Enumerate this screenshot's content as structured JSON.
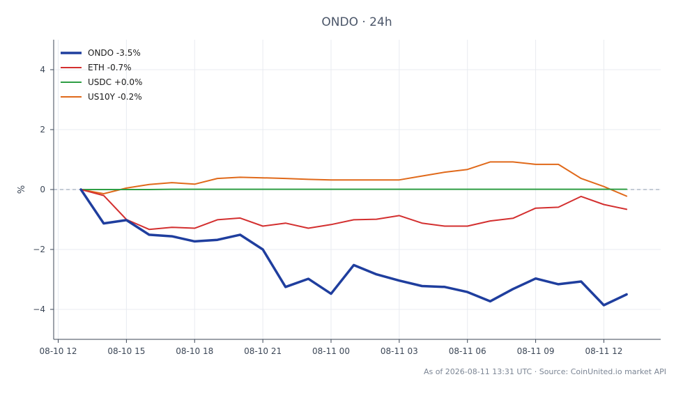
{
  "chart_data": {
    "type": "line",
    "title": "ONDO · 24h",
    "ylabel": "%",
    "xlabel": "",
    "ylim": [
      -5,
      5
    ],
    "yticks": [
      -4,
      -2,
      0,
      2,
      4
    ],
    "ytick_labels": [
      "−4",
      "−2",
      "0",
      "2",
      "4"
    ],
    "xlim_hours": [
      -0.2,
      26.5
    ],
    "xtick_labels": [
      "08-10 12",
      "08-10 15",
      "08-10 18",
      "08-10 21",
      "08-11 00",
      "08-11 03",
      "08-11 06",
      "08-11 09",
      "08-11 12"
    ],
    "grid": true,
    "legend_position": "top-left",
    "x": [
      "08-10 13:00",
      "08-10 14:00",
      "08-10 15:00",
      "08-10 16:00",
      "08-10 17:00",
      "08-10 18:00",
      "08-10 19:00",
      "08-10 20:00",
      "08-10 21:00",
      "08-10 22:00",
      "08-10 23:00",
      "08-11 00:00",
      "08-11 01:00",
      "08-11 02:00",
      "08-11 03:00",
      "08-11 04:00",
      "08-11 05:00",
      "08-11 06:00",
      "08-11 07:00",
      "08-11 08:00",
      "08-11 09:00",
      "08-11 10:00",
      "08-11 11:00",
      "08-11 12:00",
      "08-11 13:00"
    ],
    "series": [
      {
        "name": "ONDO -3.5%",
        "color": "#1f3e9e",
        "width": 3.5,
        "values": [
          0.0,
          -1.13,
          -1.02,
          -1.51,
          -1.56,
          -1.73,
          -1.68,
          -1.51,
          -2.0,
          -3.25,
          -2.98,
          -3.48,
          -2.52,
          -2.83,
          -3.04,
          -3.22,
          -3.25,
          -3.42,
          -3.73,
          -3.32,
          -2.97,
          -3.16,
          -3.07,
          -3.86,
          -3.5
        ]
      },
      {
        "name": "ETH -0.7%",
        "color": "#d32f2f",
        "width": 2,
        "values": [
          0.0,
          -0.2,
          -1.0,
          -1.33,
          -1.26,
          -1.29,
          -1.01,
          -0.95,
          -1.22,
          -1.12,
          -1.29,
          -1.17,
          -1.01,
          -0.99,
          -0.87,
          -1.12,
          -1.22,
          -1.22,
          -1.05,
          -0.96,
          -0.62,
          -0.59,
          -0.23,
          -0.5,
          -0.66
        ]
      },
      {
        "name": "USDC +0.0%",
        "color": "#2e9e44",
        "width": 2,
        "values": [
          0.0,
          0.0,
          0.0,
          0.0,
          0.01,
          0.01,
          0.01,
          0.01,
          0.01,
          0.01,
          0.01,
          0.01,
          0.01,
          0.01,
          0.01,
          0.01,
          0.01,
          0.01,
          0.01,
          0.01,
          0.01,
          0.01,
          0.01,
          0.01,
          0.01
        ]
      },
      {
        "name": "US10Y -0.2%",
        "color": "#e0691a",
        "width": 2,
        "values": [
          0.0,
          -0.14,
          0.05,
          0.17,
          0.23,
          0.18,
          0.37,
          0.41,
          0.39,
          0.37,
          0.34,
          0.32,
          0.32,
          0.32,
          0.32,
          0.45,
          0.58,
          0.67,
          0.92,
          0.92,
          0.84,
          0.84,
          0.37,
          0.1,
          -0.22
        ]
      }
    ]
  },
  "footer": "As of 2026-08-11 13:31 UTC · Source: CoinUnited.io market API"
}
